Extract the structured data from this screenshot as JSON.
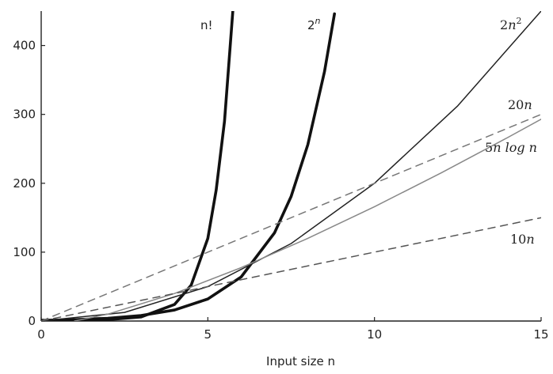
{
  "chart_data": {
    "type": "line",
    "title": "",
    "xlabel": "Input size n",
    "ylabel": "",
    "xlim": [
      0,
      15
    ],
    "ylim": [
      0,
      450
    ],
    "grid": false,
    "legend": "inline labels at line ends",
    "x_ticks": [
      "0",
      "5",
      "10",
      "15"
    ],
    "y_ticks": [
      "0",
      "100",
      "200",
      "300",
      "400"
    ],
    "series": [
      {
        "name": "n!",
        "style": "thick-solid",
        "color": "#111111",
        "x": [
          0,
          1,
          2,
          3,
          4,
          4.5,
          5,
          5.25,
          5.5,
          5.75
        ],
        "y": [
          1,
          1,
          2,
          6,
          24,
          52,
          120,
          190,
          290,
          450
        ]
      },
      {
        "name": "2^n",
        "style": "thick-solid",
        "color": "#111111",
        "x": [
          0,
          1,
          2,
          3,
          4,
          5,
          6,
          7,
          7.5,
          8,
          8.5,
          8.8
        ],
        "y": [
          1,
          2,
          4,
          8,
          16,
          32,
          64,
          128,
          181,
          256,
          362,
          446
        ]
      },
      {
        "name": "2n^2",
        "style": "solid",
        "color": "#222222",
        "x": [
          0,
          2.5,
          5,
          7.5,
          10,
          12.5,
          15
        ],
        "y": [
          0,
          12.5,
          50,
          112.5,
          200,
          312.5,
          450
        ]
      },
      {
        "name": "20n",
        "style": "dashed",
        "color": "#777777",
        "x": [
          0,
          15
        ],
        "y": [
          0,
          300
        ]
      },
      {
        "name": "5n log n",
        "style": "solid",
        "color": "#888888",
        "x": [
          1,
          2,
          4,
          6,
          8,
          10,
          12,
          14,
          15
        ],
        "y": [
          0,
          10,
          40,
          77.5,
          120,
          166,
          215,
          266.5,
          293
        ]
      },
      {
        "name": "10n",
        "style": "dashed",
        "color": "#555555",
        "x": [
          0,
          15
        ],
        "y": [
          0,
          150
        ]
      }
    ]
  }
}
